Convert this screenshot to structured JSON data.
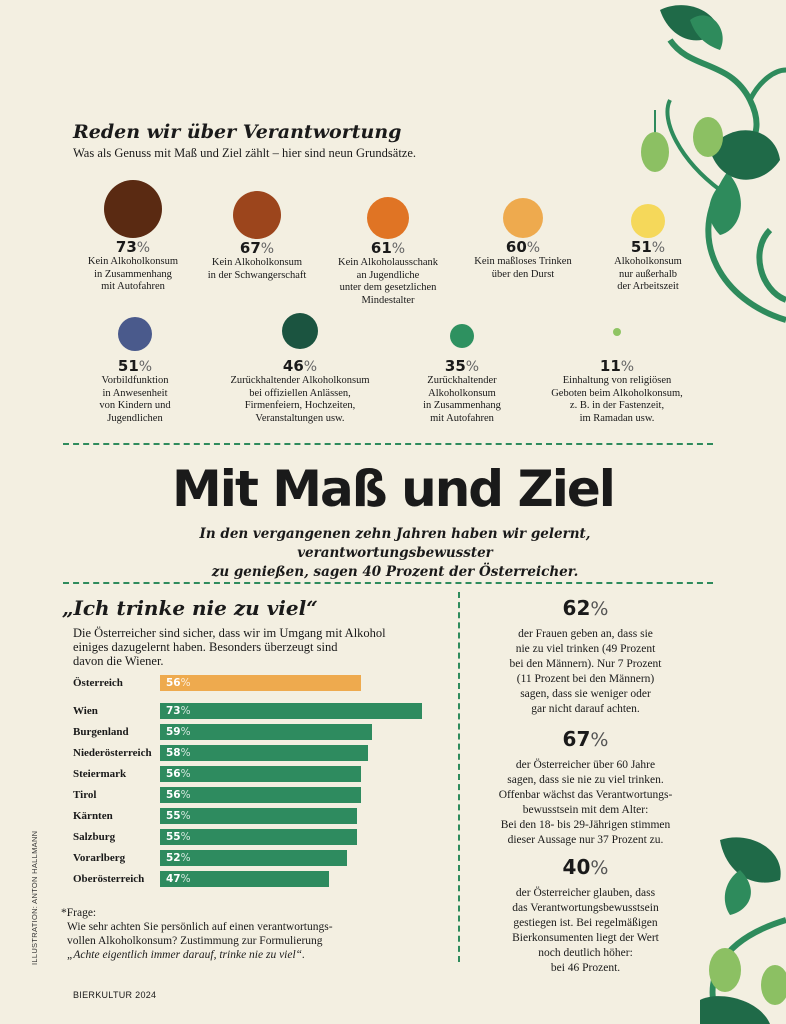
{
  "section1": {
    "title": "Reden wir über Verantwortung",
    "subtitle": "Was als Genuss mit Maß und Ziel zählt – hier sind neun Grundsätze.",
    "items": [
      {
        "value": "73",
        "unit": "%",
        "color": "#5a2a12",
        "lines": [
          "Kein Alkoholkonsum",
          "in Zusammenhang",
          "mit Autofahren"
        ]
      },
      {
        "value": "67",
        "unit": "%",
        "color": "#9c451c",
        "lines": [
          "Kein Alkoholkonsum",
          "in der Schwangerschaft"
        ]
      },
      {
        "value": "61",
        "unit": "%",
        "color": "#e07424",
        "lines": [
          "Kein Alkoholausschank",
          "an Jugendliche",
          "unter dem gesetzlichen",
          "Mindestalter"
        ]
      },
      {
        "value": "60",
        "unit": "%",
        "color": "#eeaa4e",
        "lines": [
          "Kein maßloses Trinken",
          "über den Durst"
        ]
      },
      {
        "value": "51",
        "unit": "%",
        "color": "#f5d85a",
        "lines": [
          "Alkoholkonsum",
          "nur außerhalb",
          "der Arbeitszeit"
        ]
      },
      {
        "value": "51",
        "unit": "%",
        "color": "#4a5a8c",
        "lines": [
          "Vorbildfunktion",
          "in Anwesenheit",
          "von Kindern und",
          "Jugendlichen"
        ]
      },
      {
        "value": "46",
        "unit": "%",
        "color": "#1b5440",
        "lines": [
          "Zurückhaltender Alkoholkonsum",
          "bei offiziellen Anlässen,",
          "Firmenfeiern, Hochzeiten,",
          "Veranstaltungen usw."
        ]
      },
      {
        "value": "35",
        "unit": "%",
        "color": "#2e9160",
        "lines": [
          "Zurückhaltender",
          "Alkoholkonsum",
          "in Zusammenhang",
          "mit Autofahren"
        ]
      },
      {
        "value": "11",
        "unit": "%",
        "color": "#8fc463",
        "lines": [
          "Einhaltung von religiösen",
          "Geboten beim Alkoholkonsum,",
          "z. B. in der Fastenzeit,",
          "im Ramadan usw."
        ]
      }
    ]
  },
  "headline": "Mit Maß und Ziel",
  "lead": [
    "In den vergangenen zehn Jahren haben wir gelernt, verantwortungsbewusster",
    "zu genießen, sagen 40 Prozent der Österreicher."
  ],
  "section2": {
    "title": "„Ich trinke nie zu viel“",
    "intro": [
      "Die Österreicher sind sicher, dass wir im Umgang mit Alkohol",
      "einiges dazugelernt haben. Besonders überzeugt sind",
      "davon die Wiener."
    ],
    "footnote": {
      "label": "*Frage:",
      "line1": "Wie sehr achten Sie persönlich auf einen verantwortungs-",
      "line2": "vollen Alkoholkonsum? Zustimmung zur Formulierung",
      "quote": "„Achte eigentlich immer darauf, trinke nie zu viel“."
    }
  },
  "chart_data": {
    "type": "bar",
    "orientation": "horizontal",
    "title": "„Ich trinke nie zu viel“",
    "unit": "%",
    "categories": [
      "Österreich",
      "Wien",
      "Burgenland",
      "Niederösterreich",
      "Steiermark",
      "Tirol",
      "Kärnten",
      "Salzburg",
      "Vorarlberg",
      "Oberösterreich"
    ],
    "values": [
      56,
      73,
      59,
      58,
      56,
      56,
      55,
      55,
      52,
      47
    ],
    "colors": {
      "total": "#eeaa4e",
      "regions": "#2e8b5f"
    },
    "xlim": [
      0,
      73
    ],
    "grid": false
  },
  "stats": [
    {
      "value": "62",
      "unit": "%",
      "lines": [
        "der Frauen geben an, dass sie",
        "nie zu viel trinken (49 Prozent",
        "bei den Männern). Nur 7 Prozent",
        "(11 Prozent bei den Männern)",
        "sagen, dass sie weniger oder",
        "gar nicht darauf achten."
      ]
    },
    {
      "value": "67",
      "unit": "%",
      "lines": [
        "der Österreicher über 60 Jahre",
        "sagen, dass sie nie zu viel trinken.",
        "Offenbar wächst das Verantwortungs-",
        "bewusstsein mit dem Alter:",
        "Bei den 18- bis 29-Jährigen stimmen",
        "dieser Aussage nur 37 Prozent zu."
      ]
    },
    {
      "value": "40",
      "unit": "%",
      "lines": [
        "der Österreicher glauben, dass",
        "das Verantwortungsbewusstsein",
        "gestiegen ist. Bei regelmäßigen",
        "Bierkonsumenten liegt der Wert",
        "noch deutlich höher:",
        "bei 46 Prozent."
      ]
    }
  ],
  "credit": "ILLUSTRATION: ANTON HALLMANN",
  "folio": "BIERKULTUR 2024",
  "accent": "#2e8b5c"
}
